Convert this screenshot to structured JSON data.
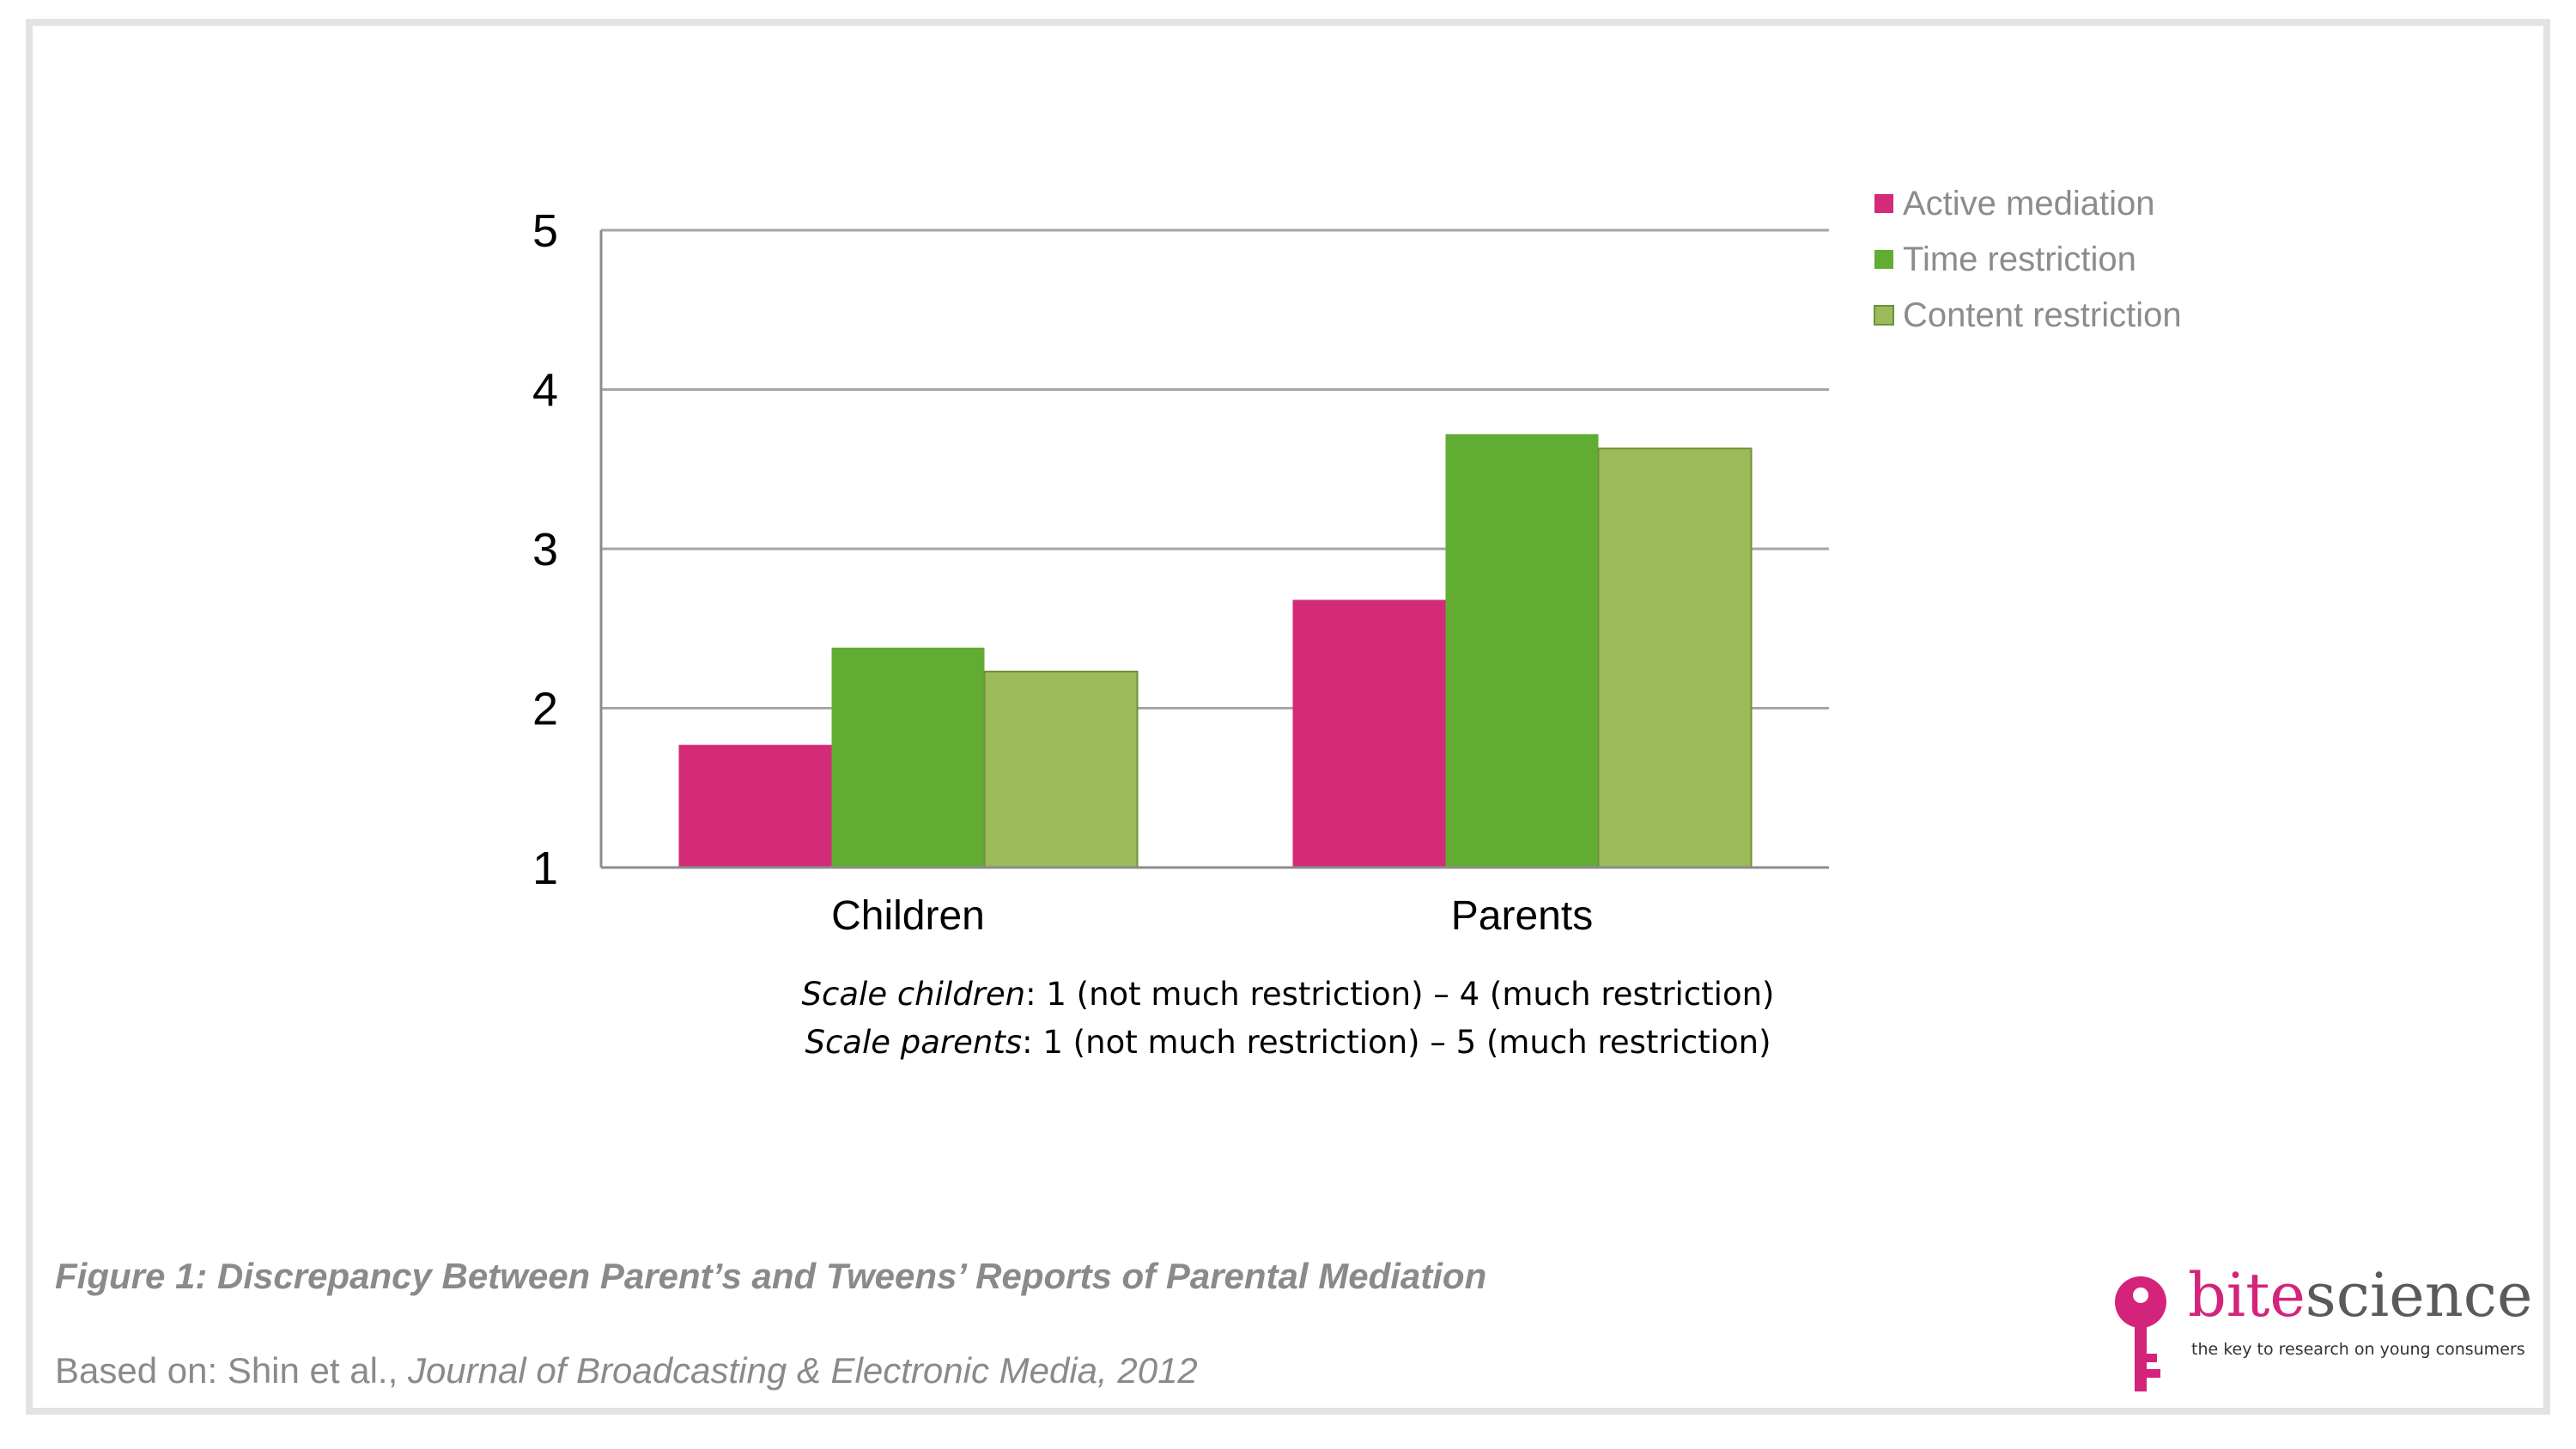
{
  "chart_data": {
    "type": "bar",
    "categories": [
      "Children",
      "Parents"
    ],
    "series": [
      {
        "name": "Active mediation",
        "color": "#d42b78",
        "values": [
          1.77,
          2.68
        ]
      },
      {
        "name": "Time restriction",
        "color": "#61ad33",
        "values": [
          2.38,
          3.72
        ]
      },
      {
        "name": "Content restriction",
        "color": "#9bbb59",
        "values": [
          2.23,
          3.63
        ]
      }
    ],
    "ylim": [
      1,
      5
    ],
    "yticks": [
      1,
      2,
      3,
      4,
      5
    ],
    "grid": true,
    "legend_position": "top-right"
  },
  "note": {
    "children_label": "Scale children",
    "children_text": ": 1 (not much restriction) – 4 (much restriction)",
    "parents_label": "Scale parents",
    "parents_text": ": 1 (not much restriction) – 5 (much restriction)"
  },
  "caption": "Figure 1: Discrepancy Between Parent’s and Tweens’ Reports of Parental Mediation",
  "source": {
    "prefix": "Based on: Shin et al., ",
    "journal": "Journal of Broadcasting & Electronic Media, 2012"
  },
  "logo": {
    "brand_part1": "bite",
    "brand_part2": "science",
    "tagline": "the key to research on young consumers",
    "icon": "key-icon",
    "accent_color": "#d4237a"
  }
}
